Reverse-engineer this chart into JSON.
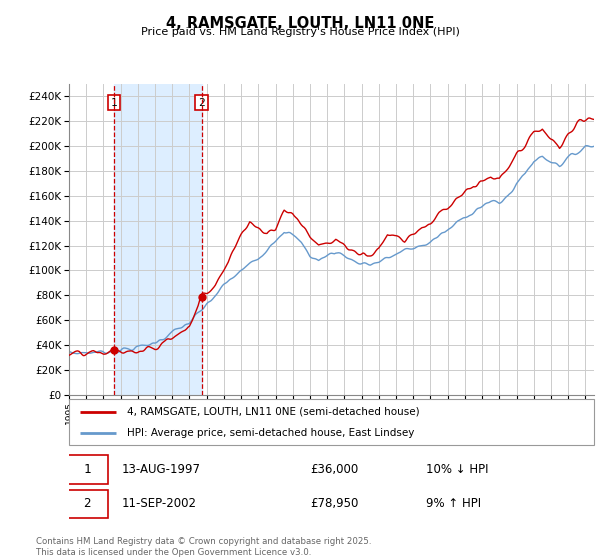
{
  "title": "4, RAMSGATE, LOUTH, LN11 0NE",
  "subtitle": "Price paid vs. HM Land Registry's House Price Index (HPI)",
  "ylim": [
    0,
    250000
  ],
  "yticks": [
    0,
    20000,
    40000,
    60000,
    80000,
    100000,
    120000,
    140000,
    160000,
    180000,
    200000,
    220000,
    240000
  ],
  "xlim_start": 1995.0,
  "xlim_end": 2025.5,
  "purchase1_x": 1997.617,
  "purchase1_y": 36000,
  "purchase1_label": "1",
  "purchase2_x": 2002.7,
  "purchase2_y": 78950,
  "purchase2_label": "2",
  "legend_line1": "4, RAMSGATE, LOUTH, LN11 0NE (semi-detached house)",
  "legend_line2": "HPI: Average price, semi-detached house, East Lindsey",
  "table_row1": [
    "1",
    "13-AUG-1997",
    "£36,000",
    "10% ↓ HPI"
  ],
  "table_row2": [
    "2",
    "11-SEP-2002",
    "£78,950",
    "9% ↑ HPI"
  ],
  "footer": "Contains HM Land Registry data © Crown copyright and database right 2025.\nThis data is licensed under the Open Government Licence v3.0.",
  "price_color": "#cc0000",
  "hpi_color": "#6699cc",
  "bg_shaded_color": "#ddeeff",
  "vline_color_dashed": "#cc0000",
  "grid_color": "#cccccc",
  "hpi_anchors": [
    [
      1995.0,
      33500
    ],
    [
      1996.0,
      34000
    ],
    [
      1997.0,
      34500
    ],
    [
      1998.0,
      36000
    ],
    [
      1999.0,
      38000
    ],
    [
      2000.0,
      42000
    ],
    [
      2001.0,
      50000
    ],
    [
      2002.0,
      58000
    ],
    [
      2003.0,
      72000
    ],
    [
      2004.0,
      88000
    ],
    [
      2005.0,
      100000
    ],
    [
      2006.0,
      110000
    ],
    [
      2007.0,
      125000
    ],
    [
      2007.5,
      132000
    ],
    [
      2008.0,
      128000
    ],
    [
      2008.5,
      122000
    ],
    [
      2009.0,
      112000
    ],
    [
      2009.5,
      108000
    ],
    [
      2010.0,
      112000
    ],
    [
      2010.5,
      115000
    ],
    [
      2011.0,
      112000
    ],
    [
      2011.5,
      108000
    ],
    [
      2012.0,
      106000
    ],
    [
      2012.5,
      105000
    ],
    [
      2013.0,
      107000
    ],
    [
      2013.5,
      110000
    ],
    [
      2014.0,
      113000
    ],
    [
      2014.5,
      116000
    ],
    [
      2015.0,
      118000
    ],
    [
      2015.5,
      120000
    ],
    [
      2016.0,
      123000
    ],
    [
      2016.5,
      128000
    ],
    [
      2017.0,
      132000
    ],
    [
      2017.5,
      138000
    ],
    [
      2018.0,
      143000
    ],
    [
      2018.5,
      148000
    ],
    [
      2019.0,
      152000
    ],
    [
      2019.5,
      155000
    ],
    [
      2020.0,
      154000
    ],
    [
      2020.5,
      160000
    ],
    [
      2021.0,
      170000
    ],
    [
      2021.5,
      178000
    ],
    [
      2022.0,
      188000
    ],
    [
      2022.5,
      192000
    ],
    [
      2023.0,
      188000
    ],
    [
      2023.5,
      185000
    ],
    [
      2024.0,
      190000
    ],
    [
      2024.5,
      195000
    ],
    [
      2025.0,
      200000
    ]
  ],
  "price_anchors": [
    [
      1995.0,
      32000
    ],
    [
      1996.0,
      33000
    ],
    [
      1997.0,
      33500
    ],
    [
      1997.617,
      36000
    ],
    [
      1998.0,
      35000
    ],
    [
      1999.0,
      34000
    ],
    [
      2000.0,
      38000
    ],
    [
      2001.0,
      46000
    ],
    [
      2002.0,
      55000
    ],
    [
      2002.7,
      78950
    ],
    [
      2003.0,
      82000
    ],
    [
      2003.5,
      90000
    ],
    [
      2004.0,
      102000
    ],
    [
      2004.5,
      115000
    ],
    [
      2005.0,
      128000
    ],
    [
      2005.5,
      140000
    ],
    [
      2006.0,
      135000
    ],
    [
      2006.5,
      130000
    ],
    [
      2007.0,
      135000
    ],
    [
      2007.5,
      148000
    ],
    [
      2008.0,
      145000
    ],
    [
      2008.5,
      138000
    ],
    [
      2009.0,
      128000
    ],
    [
      2009.5,
      120000
    ],
    [
      2010.0,
      122000
    ],
    [
      2010.5,
      125000
    ],
    [
      2011.0,
      120000
    ],
    [
      2011.5,
      115000
    ],
    [
      2012.0,
      112000
    ],
    [
      2012.5,
      114000
    ],
    [
      2013.0,
      118000
    ],
    [
      2013.5,
      130000
    ],
    [
      2014.0,
      128000
    ],
    [
      2014.5,
      125000
    ],
    [
      2015.0,
      130000
    ],
    [
      2015.5,
      135000
    ],
    [
      2016.0,
      138000
    ],
    [
      2016.5,
      145000
    ],
    [
      2017.0,
      150000
    ],
    [
      2017.5,
      158000
    ],
    [
      2018.0,
      162000
    ],
    [
      2018.5,
      168000
    ],
    [
      2019.0,
      170000
    ],
    [
      2019.5,
      175000
    ],
    [
      2020.0,
      172000
    ],
    [
      2020.5,
      182000
    ],
    [
      2021.0,
      192000
    ],
    [
      2021.5,
      200000
    ],
    [
      2022.0,
      210000
    ],
    [
      2022.5,
      215000
    ],
    [
      2023.0,
      205000
    ],
    [
      2023.5,
      198000
    ],
    [
      2024.0,
      210000
    ],
    [
      2024.5,
      218000
    ],
    [
      2025.0,
      222000
    ]
  ]
}
